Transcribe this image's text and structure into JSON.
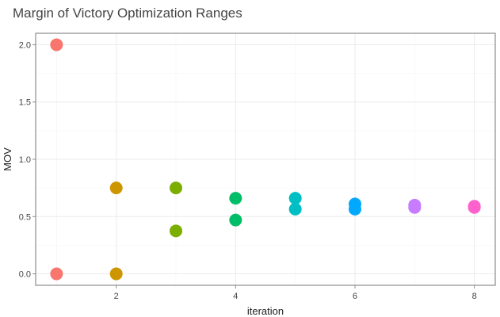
{
  "chart_data": {
    "type": "scatter",
    "title": "Margin of Victory Optimization Ranges",
    "xlabel": "iteration",
    "ylabel": "MOV",
    "xlim": [
      0.65,
      8.35
    ],
    "ylim": [
      -0.1,
      2.1
    ],
    "x_ticks": [
      2,
      4,
      6,
      8
    ],
    "x_tick_labels": [
      "2",
      "4",
      "6",
      "8"
    ],
    "y_ticks": [
      0,
      0.5,
      1,
      1.5,
      2
    ],
    "y_tick_labels": [
      "0.0",
      "0.5",
      "1.0",
      "1.5",
      "2.0"
    ],
    "grid": true,
    "legend": "none",
    "series": [
      {
        "x": [
          1,
          1
        ],
        "y": [
          2.0,
          0.0
        ],
        "color": "#F8766D"
      },
      {
        "x": [
          2,
          2
        ],
        "y": [
          0.75,
          0.0
        ],
        "color": "#CD9600"
      },
      {
        "x": [
          3,
          3
        ],
        "y": [
          0.75,
          0.375
        ],
        "color": "#7CAE00"
      },
      {
        "x": [
          4,
          4
        ],
        "y": [
          0.66,
          0.47
        ],
        "color": "#00BE67"
      },
      {
        "x": [
          5,
          5
        ],
        "y": [
          0.66,
          0.565
        ],
        "color": "#00BFC4"
      },
      {
        "x": [
          6,
          6
        ],
        "y": [
          0.61,
          0.565
        ],
        "color": "#00A9FF"
      },
      {
        "x": [
          7,
          7
        ],
        "y": [
          0.6,
          0.58
        ],
        "color": "#C77CFF"
      },
      {
        "x": [
          8,
          8
        ],
        "y": [
          0.59,
          0.58
        ],
        "color": "#FF61CC"
      }
    ]
  }
}
